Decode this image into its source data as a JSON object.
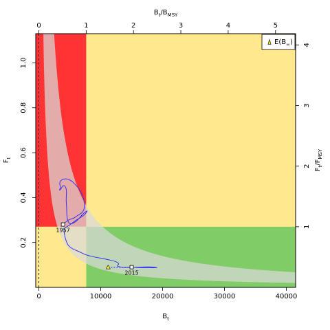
{
  "chart_data": {
    "type": "kobe-phase-plot",
    "colors": {
      "red": "#ff3333",
      "yellow": "#ffe98c",
      "green": "#80cc66",
      "band": "#d9d9d9",
      "trajectory": "#3333ee",
      "point_fill": "#ffffff",
      "expected_fill": "#ffff00",
      "expected_stroke": "#333333"
    },
    "axes": {
      "bottom": {
        "label": "B",
        "label_sub": "t",
        "range": [
          -500,
          41500
        ],
        "ticks": [
          0,
          10000,
          20000,
          30000,
          40000
        ],
        "tick_labels": [
          "0",
          "10000",
          "20000",
          "30000",
          "40000"
        ]
      },
      "left": {
        "label": "F",
        "label_sub": "t",
        "range": [
          0,
          1.13
        ],
        "ticks": [
          0.2,
          0.4,
          0.6,
          0.8,
          1.0
        ],
        "tick_labels": [
          "0.2",
          "0.4",
          "0.6",
          "0.8",
          "1.0"
        ]
      },
      "top": {
        "label": "B",
        "label_sub": "t",
        "label_mid": "/B",
        "label_sub2": "MSY",
        "ticks": [
          0,
          1,
          2,
          3,
          4,
          5
        ],
        "tick_labels": [
          "0",
          "1",
          "2",
          "3",
          "4",
          "5"
        ]
      },
      "right": {
        "label": "F",
        "label_sub": "t",
        "label_mid": "/F",
        "label_sub2": "MSY",
        "ticks": [
          1,
          2,
          3,
          4
        ],
        "tick_labels": [
          "1",
          "2",
          "3",
          "4"
        ]
      }
    },
    "reference": {
      "bmsy": 7650,
      "fmsy": 0.27
    },
    "band": {
      "k": 1800,
      "spread": 0.55
    },
    "trajectory": {
      "B": [
        3900,
        4700,
        5300,
        5800,
        6200,
        6900,
        7300,
        7400,
        7200,
        6800,
        6200,
        5100,
        4000,
        3300,
        3500,
        3300,
        3600,
        3900,
        4300,
        4500,
        4400,
        4500,
        4500,
        4600,
        5000,
        5900,
        6600,
        7200,
        8000,
        7300,
        6000,
        5100,
        4500,
        4000,
        4200,
        4500,
        4800,
        5500,
        6500,
        7500,
        9000,
        11000,
        12500,
        13000,
        12600,
        13200,
        14000,
        15000,
        16500,
        18000,
        19500,
        18000,
        16000,
        15000
      ],
      "F": [
        0.28,
        0.3,
        0.305,
        0.31,
        0.32,
        0.33,
        0.345,
        0.37,
        0.4,
        0.425,
        0.45,
        0.48,
        0.485,
        0.47,
        0.445,
        0.43,
        0.44,
        0.455,
        0.45,
        0.43,
        0.39,
        0.36,
        0.33,
        0.3,
        0.28,
        0.29,
        0.31,
        0.33,
        0.345,
        0.32,
        0.3,
        0.28,
        0.27,
        0.26,
        0.225,
        0.2,
        0.185,
        0.17,
        0.16,
        0.145,
        0.135,
        0.125,
        0.115,
        0.105,
        0.095,
        0.09,
        0.088,
        0.09,
        0.09,
        0.092,
        0.088,
        0.087,
        0.088,
        0.09
      ]
    },
    "first_point": {
      "B": 3900,
      "F": 0.28,
      "label": "1957"
    },
    "last_point": {
      "B": 15000,
      "F": 0.09,
      "label": "2015"
    },
    "expected": {
      "B": 11200,
      "F": 0.09,
      "dotted_to": 15000
    },
    "legend": {
      "position": "top-right",
      "label": "E(B",
      "label_sub": "∞",
      "label_end": ")"
    }
  }
}
